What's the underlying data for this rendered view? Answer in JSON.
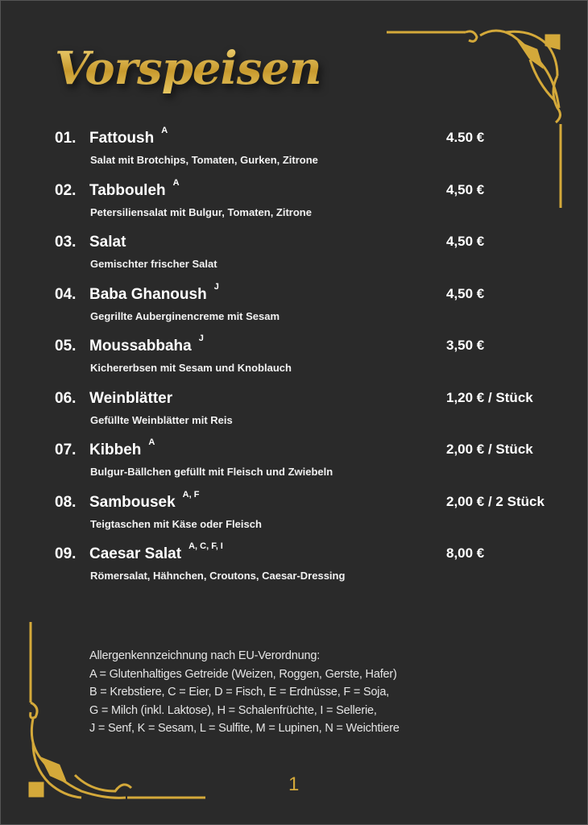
{
  "title": "Vorspeisen",
  "items": [
    {
      "number": "01.",
      "name": "Fattoush",
      "allergens": "A",
      "price": "4.50 €",
      "description": "Salat mit Brotchips, Tomaten, Gurken, Zitrone"
    },
    {
      "number": "02.",
      "name": "Tabbouleh",
      "allergens": "A",
      "price": "4,50 €",
      "description": "Petersiliensalat mit Bulgur, Tomaten, Zitrone"
    },
    {
      "number": "03.",
      "name": "Salat",
      "allergens": "",
      "price": "4,50 €",
      "description": "Gemischter frischer Salat"
    },
    {
      "number": "04.",
      "name": "Baba Ghanoush",
      "allergens": "J",
      "price": "4,50 €",
      "description": "Gegrillte Auberginencreme mit Sesam"
    },
    {
      "number": "05.",
      "name": "Moussabbaha",
      "allergens": "J",
      "price": "3,50 €",
      "description": "Kichererbsen mit Sesam und Knoblauch"
    },
    {
      "number": "06.",
      "name": "Weinblätter",
      "allergens": "",
      "price": "1,20 € / Stück",
      "description": "Gefüllte Weinblätter mit Reis"
    },
    {
      "number": "07.",
      "name": "Kibbeh",
      "allergens": "A",
      "price": "2,00 € / Stück",
      "description": "Bulgur-Bällchen gefüllt mit Fleisch und Zwiebeln"
    },
    {
      "number": "08.",
      "name": "Sambousek",
      "allergens": "A, F",
      "price": "2,00 € / 2 Stück",
      "description": "Teigtaschen mit Käse oder Fleisch"
    },
    {
      "number": "09.",
      "name": "Caesar Salat",
      "allergens": "A, C, F, I",
      "price": "8,00 €",
      "description": "Römersalat, Hähnchen, Croutons, Caesar-Dressing"
    }
  ],
  "allergen_legend": [
    "Allergenkennzeichnung nach EU-Verordnung:",
    "A = Glutenhaltiges Getreide (Weizen, Roggen, Gerste, Hafer)",
    "B = Krebstiere, C = Eier, D = Fisch, E = Erdnüsse, F = Soja,",
    "G = Milch (inkl. Laktose), H = Schalenfrüchte, I = Sellerie,",
    "J = Senf, K = Sesam, L = Sulfite, M = Lupinen, N = Weichtiere"
  ],
  "page_number": "1",
  "colors": {
    "background": "#2a2a2a",
    "gold": "#d4a93a",
    "text": "#ffffff"
  }
}
